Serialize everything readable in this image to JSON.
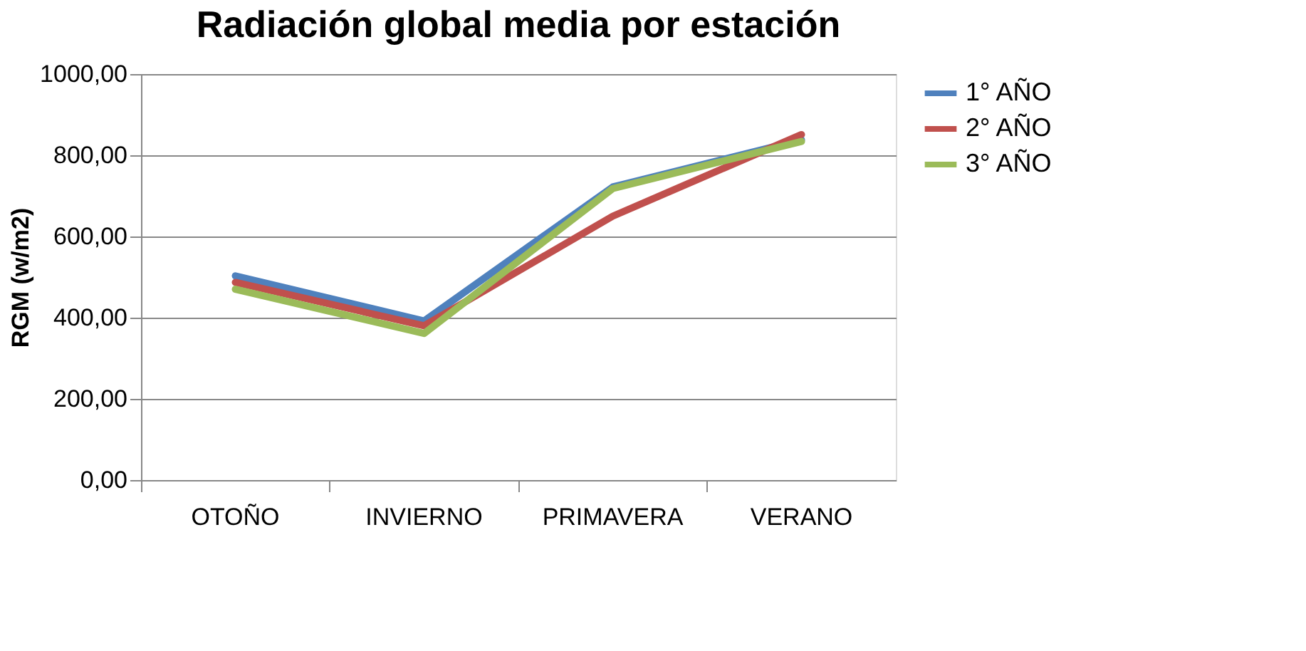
{
  "chart_data": {
    "type": "line",
    "title": "Radiación global media por estación",
    "ylabel": "RGM (w/m2)",
    "categories": [
      "OTOÑO",
      "INVIERNO",
      "PRIMAVERA",
      "VERANO"
    ],
    "series": [
      {
        "name": "1° AÑO",
        "color": "#4f81bd",
        "values": [
          503,
          392,
          722,
          838
        ]
      },
      {
        "name": "2° AÑO",
        "color": "#c0504d",
        "values": [
          487,
          380,
          650,
          851
        ]
      },
      {
        "name": "3° AÑO",
        "color": "#9bbb59",
        "values": [
          470,
          361,
          718,
          834
        ]
      }
    ],
    "ylim": [
      0,
      1000
    ],
    "yticks": [
      {
        "value": 0,
        "label": "0,00"
      },
      {
        "value": 200,
        "label": "200,00"
      },
      {
        "value": 400,
        "label": "400,00"
      },
      {
        "value": 600,
        "label": "600,00"
      },
      {
        "value": 800,
        "label": "800,00"
      },
      {
        "value": 1000,
        "label": "1000,00"
      }
    ],
    "grid": "y",
    "legend": "right",
    "marker": "none",
    "line_style": "solid"
  }
}
